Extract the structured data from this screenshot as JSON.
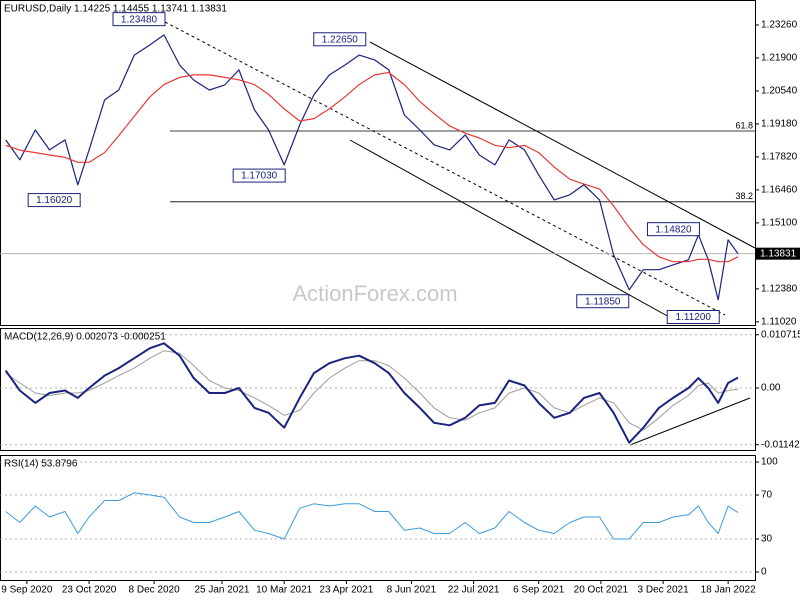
{
  "chart_data": [
    {
      "type": "line",
      "title": "EURUSD,Daily  1.14225 1.14455 1.13741 1.13831",
      "watermark": "ActionForex.com",
      "xlim": [
        "2020-08-21",
        "2022-02-06"
      ],
      "ylim": [
        1.1089,
        1.2429
      ],
      "yticks": [
        {
          "value": 1.2326,
          "label": "1.23260"
        },
        {
          "value": 1.219,
          "label": "1.21900"
        },
        {
          "value": 1.2054,
          "label": "1.20540"
        },
        {
          "value": 1.1918,
          "label": "1.19180"
        },
        {
          "value": 1.1782,
          "label": "1.17820"
        },
        {
          "value": 1.1646,
          "label": "1.16460"
        },
        {
          "value": 1.151,
          "label": "1.15100"
        },
        {
          "value": 1.1374,
          "label": "1.13740"
        },
        {
          "value": 1.1238,
          "label": "1.12380"
        },
        {
          "value": 1.1102,
          "label": "1.11020"
        }
      ],
      "x": [
        "2020-08-25",
        "2020-09-04",
        "2020-09-15",
        "2020-09-25",
        "2020-10-06",
        "2020-10-15",
        "2020-10-23",
        "2020-11-03",
        "2020-11-13",
        "2020-11-24",
        "2020-12-05",
        "2020-12-15",
        "2020-12-26",
        "2021-01-05",
        "2021-01-16",
        "2021-01-27",
        "2021-02-06",
        "2021-02-17",
        "2021-02-27",
        "2021-03-10",
        "2021-03-21",
        "2021-03-31",
        "2021-04-11",
        "2021-04-22",
        "2021-05-02",
        "2021-05-13",
        "2021-05-23",
        "2021-06-03",
        "2021-06-14",
        "2021-06-24",
        "2021-07-05",
        "2021-07-16",
        "2021-07-26",
        "2021-08-06",
        "2021-08-16",
        "2021-08-27",
        "2021-09-06",
        "2021-09-17",
        "2021-09-28",
        "2021-10-08",
        "2021-10-19",
        "2021-10-29",
        "2021-11-09",
        "2021-11-19",
        "2021-11-30",
        "2021-12-10",
        "2021-12-21",
        "2021-12-28",
        "2022-01-04",
        "2022-01-11",
        "2022-01-18",
        "2022-01-25"
      ],
      "series": [
        {
          "color": "#1a237e",
          "width": 1.2,
          "values": [
            1.1852,
            1.177,
            1.1893,
            1.1811,
            1.1852,
            1.1667,
            1.1811,
            1.2017,
            1.2058,
            1.2202,
            1.2244,
            1.2285,
            1.2161,
            1.2099,
            1.2058,
            1.2079,
            1.2141,
            1.1976,
            1.1893,
            1.1749,
            1.1914,
            1.2038,
            1.212,
            1.2161,
            1.2202,
            1.2182,
            1.2141,
            1.1955,
            1.1893,
            1.1832,
            1.1811,
            1.1873,
            1.179,
            1.1749,
            1.1852,
            1.1811,
            1.1708,
            1.1605,
            1.1626,
            1.1667,
            1.1605,
            1.1378,
            1.1234,
            1.1317,
            1.1317,
            1.1337,
            1.1358,
            1.1461,
            1.1358,
            1.1193,
            1.144,
            1.1383
          ]
        },
        {
          "color": "#e53935",
          "width": 1.2,
          "values": [
            1.183,
            1.181,
            1.18,
            1.179,
            1.178,
            1.176,
            1.176,
            1.18,
            1.187,
            1.195,
            1.203,
            1.208,
            1.211,
            1.212,
            1.212,
            1.211,
            1.21,
            1.208,
            1.204,
            1.198,
            1.193,
            1.194,
            1.198,
            1.203,
            1.208,
            1.212,
            1.213,
            1.208,
            1.201,
            1.196,
            1.191,
            1.188,
            1.186,
            1.183,
            1.182,
            1.183,
            1.18,
            1.174,
            1.169,
            1.167,
            1.165,
            1.158,
            1.149,
            1.142,
            1.137,
            1.135,
            1.135,
            1.136,
            1.136,
            1.135,
            1.135,
            1.137
          ]
        }
      ],
      "annotations": [
        {
          "x": "2020-12-15",
          "value": 1.2348,
          "label": "1.23480"
        },
        {
          "x": "2021-05-06",
          "value": 1.2265,
          "label": "1.22650"
        },
        {
          "x": "2021-03-10",
          "value": 1.1703,
          "label": "1.17030"
        },
        {
          "x": "2020-10-16",
          "value": 1.1602,
          "label": "1.16020"
        },
        {
          "x": "2021-11-08",
          "value": 1.1185,
          "label": "1.11850"
        },
        {
          "x": "2022-01-11",
          "value": 1.112,
          "label": "1.11200"
        },
        {
          "x": "2021-12-28",
          "value": 1.1482,
          "label": "1.14820"
        }
      ],
      "levels": [
        {
          "value": 1.1889,
          "label": "61.8"
        },
        {
          "value": 1.1597,
          "label": "38.2"
        }
      ],
      "last_price": {
        "value": 1.13831,
        "label": "1.13831"
      }
    },
    {
      "type": "line",
      "title": "MACD(12,26,9) 0.002073 -0.000251",
      "xlim": [
        "2020-08-21",
        "2022-02-06"
      ],
      "ylim": [
        -0.012478,
        0.012075
      ],
      "yticks": [
        0.010715,
        {
          "value": 0,
          "label": "0.00"
        },
        -0.011424
      ],
      "grid": true,
      "x": [
        "2020-08-25",
        "2020-09-04",
        "2020-09-15",
        "2020-09-25",
        "2020-10-06",
        "2020-10-15",
        "2020-10-23",
        "2020-11-03",
        "2020-11-13",
        "2020-11-24",
        "2020-12-05",
        "2020-12-15",
        "2020-12-26",
        "2021-01-05",
        "2021-01-16",
        "2021-01-27",
        "2021-02-06",
        "2021-02-17",
        "2021-02-27",
        "2021-03-10",
        "2021-03-21",
        "2021-03-31",
        "2021-04-11",
        "2021-04-22",
        "2021-05-02",
        "2021-05-13",
        "2021-05-23",
        "2021-06-03",
        "2021-06-14",
        "2021-06-24",
        "2021-07-05",
        "2021-07-16",
        "2021-07-26",
        "2021-08-06",
        "2021-08-16",
        "2021-08-27",
        "2021-09-06",
        "2021-09-17",
        "2021-09-28",
        "2021-10-08",
        "2021-10-19",
        "2021-10-29",
        "2021-11-09",
        "2021-11-19",
        "2021-11-30",
        "2021-12-10",
        "2021-12-21",
        "2021-12-28",
        "2022-01-04",
        "2022-01-11",
        "2022-01-18",
        "2022-01-25"
      ],
      "series": [
        {
          "color": "#9e9e9e",
          "width": 1,
          "values": [
            0.003,
            0.001,
            -0.001,
            -0.0015,
            -0.001,
            -0.001,
            -0.0005,
            0.001,
            0.0025,
            0.004,
            0.006,
            0.0075,
            0.007,
            0.0045,
            0.0015,
            0,
            -0.0005,
            -0.002,
            -0.0035,
            -0.0055,
            -0.0045,
            -0.001,
            0.002,
            0.004,
            0.0055,
            0.0055,
            0.0045,
            0.002,
            -0.001,
            -0.004,
            -0.006,
            -0.0065,
            -0.005,
            -0.004,
            -0.001,
            0,
            -0.001,
            -0.004,
            -0.005,
            -0.0035,
            -0.002,
            -0.003,
            -0.007,
            -0.0085,
            -0.006,
            -0.0035,
            -0.0015,
            0.0005,
            0.001,
            -0.001,
            -0.0005,
            -0.00025
          ]
        },
        {
          "color": "#1a237e",
          "width": 2,
          "values": [
            0.0035,
            -0.0005,
            -0.003,
            -0.001,
            -0.0005,
            -0.002,
            0,
            0.0025,
            0.004,
            0.006,
            0.008,
            0.009,
            0.0065,
            0.002,
            -0.001,
            -0.001,
            0,
            -0.004,
            -0.005,
            -0.008,
            -0.002,
            0.003,
            0.005,
            0.006,
            0.0065,
            0.005,
            0.003,
            -0.001,
            -0.004,
            -0.007,
            -0.0075,
            -0.006,
            -0.0035,
            -0.003,
            0.0015,
            0.0005,
            -0.003,
            -0.006,
            -0.005,
            -0.002,
            -0.001,
            -0.005,
            -0.011,
            -0.008,
            -0.004,
            -0.002,
            0,
            0.002,
            0,
            -0.003,
            0.001,
            0.0021
          ]
        }
      ]
    },
    {
      "type": "line",
      "title": "RSI(14) 53.8796",
      "xlim": [
        "2020-08-21",
        "2022-02-06"
      ],
      "ylim": [
        -7.3,
        106.4
      ],
      "yticks": [
        100,
        70,
        30,
        0
      ],
      "grid": true,
      "xticks": [
        {
          "value": "2020-09-09",
          "label": "9 Sep 2020"
        },
        {
          "value": "2020-10-23",
          "label": "23 Oct 2020"
        },
        {
          "value": "2020-12-08",
          "label": "8 Dec 2020"
        },
        {
          "value": "2021-01-25",
          "label": "25 Jan 2021"
        },
        {
          "value": "2021-03-10",
          "label": "10 Mar 2021"
        },
        {
          "value": "2021-04-23",
          "label": "23 Apr 2021"
        },
        {
          "value": "2021-06-08",
          "label": "8 Jun 2021"
        },
        {
          "value": "2021-07-22",
          "label": "22 Jul 2021"
        },
        {
          "value": "2021-09-06",
          "label": "6 Sep 2021"
        },
        {
          "value": "2021-10-20",
          "label": "20 Oct 2021"
        },
        {
          "value": "2021-12-03",
          "label": "3 Dec 2021"
        },
        {
          "value": "2022-01-18",
          "label": "18 Jan 2022"
        }
      ],
      "x": [
        "2020-08-25",
        "2020-09-04",
        "2020-09-15",
        "2020-09-25",
        "2020-10-06",
        "2020-10-15",
        "2020-10-23",
        "2020-11-03",
        "2020-11-13",
        "2020-11-24",
        "2020-12-05",
        "2020-12-15",
        "2020-12-26",
        "2021-01-05",
        "2021-01-16",
        "2021-01-27",
        "2021-02-06",
        "2021-02-17",
        "2021-02-27",
        "2021-03-10",
        "2021-03-21",
        "2021-03-31",
        "2021-04-11",
        "2021-04-22",
        "2021-05-02",
        "2021-05-13",
        "2021-05-23",
        "2021-06-03",
        "2021-06-14",
        "2021-06-24",
        "2021-07-05",
        "2021-07-16",
        "2021-07-26",
        "2021-08-06",
        "2021-08-16",
        "2021-08-27",
        "2021-09-06",
        "2021-09-17",
        "2021-09-28",
        "2021-10-08",
        "2021-10-19",
        "2021-10-29",
        "2021-11-09",
        "2021-11-19",
        "2021-11-30",
        "2021-12-10",
        "2021-12-21",
        "2021-12-28",
        "2022-01-04",
        "2022-01-11",
        "2022-01-18",
        "2022-01-25"
      ],
      "series": [
        {
          "color": "#3d9be0",
          "width": 1,
          "values": [
            55,
            45,
            60,
            50,
            55,
            35,
            50,
            65,
            65,
            72,
            70,
            68,
            50,
            45,
            45,
            50,
            55,
            38,
            35,
            30,
            58,
            62,
            60,
            62,
            62,
            55,
            55,
            38,
            40,
            35,
            35,
            45,
            35,
            40,
            55,
            45,
            38,
            35,
            45,
            50,
            50,
            30,
            30,
            45,
            45,
            50,
            52,
            60,
            45,
            35,
            60,
            54
          ]
        }
      ]
    }
  ]
}
